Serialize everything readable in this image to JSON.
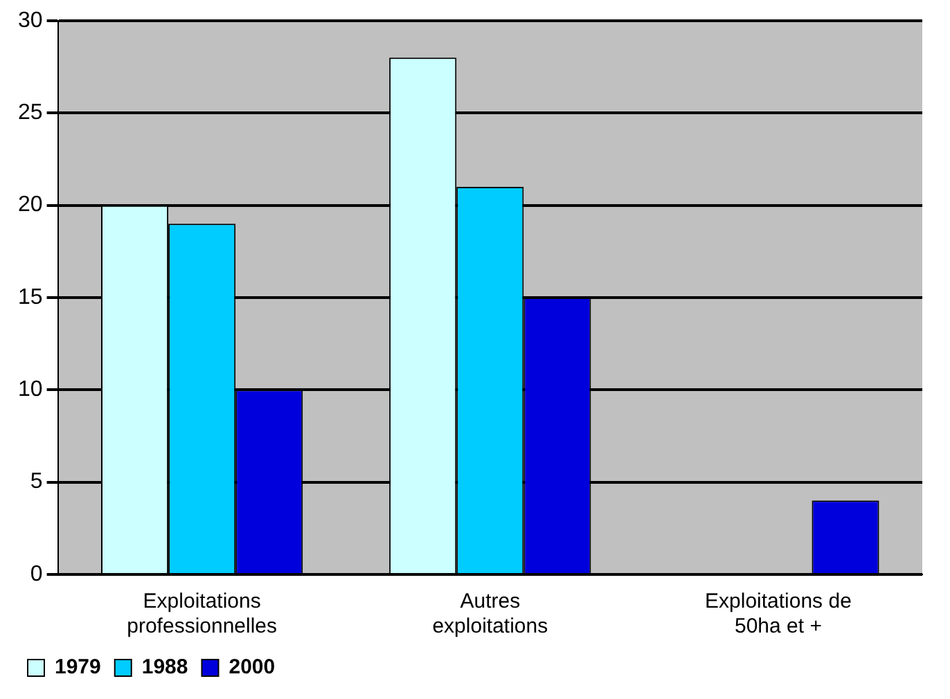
{
  "chart_data": {
    "type": "bar",
    "categories": [
      "Exploitations professionnelles",
      "Autres exploitations",
      "Exploitations de 50ha et +"
    ],
    "series": [
      {
        "name": "1979",
        "color": "#ccffff",
        "values": [
          20,
          28,
          0
        ]
      },
      {
        "name": "1988",
        "color": "#00ccff",
        "values": [
          19,
          21,
          0
        ]
      },
      {
        "name": "2000",
        "color": "#0000dd",
        "values": [
          10,
          15,
          4
        ]
      }
    ],
    "ylim": [
      0,
      30
    ],
    "yticks": [
      0,
      5,
      10,
      15,
      20,
      25,
      30
    ],
    "grid": "y",
    "legend": "bottom left"
  }
}
